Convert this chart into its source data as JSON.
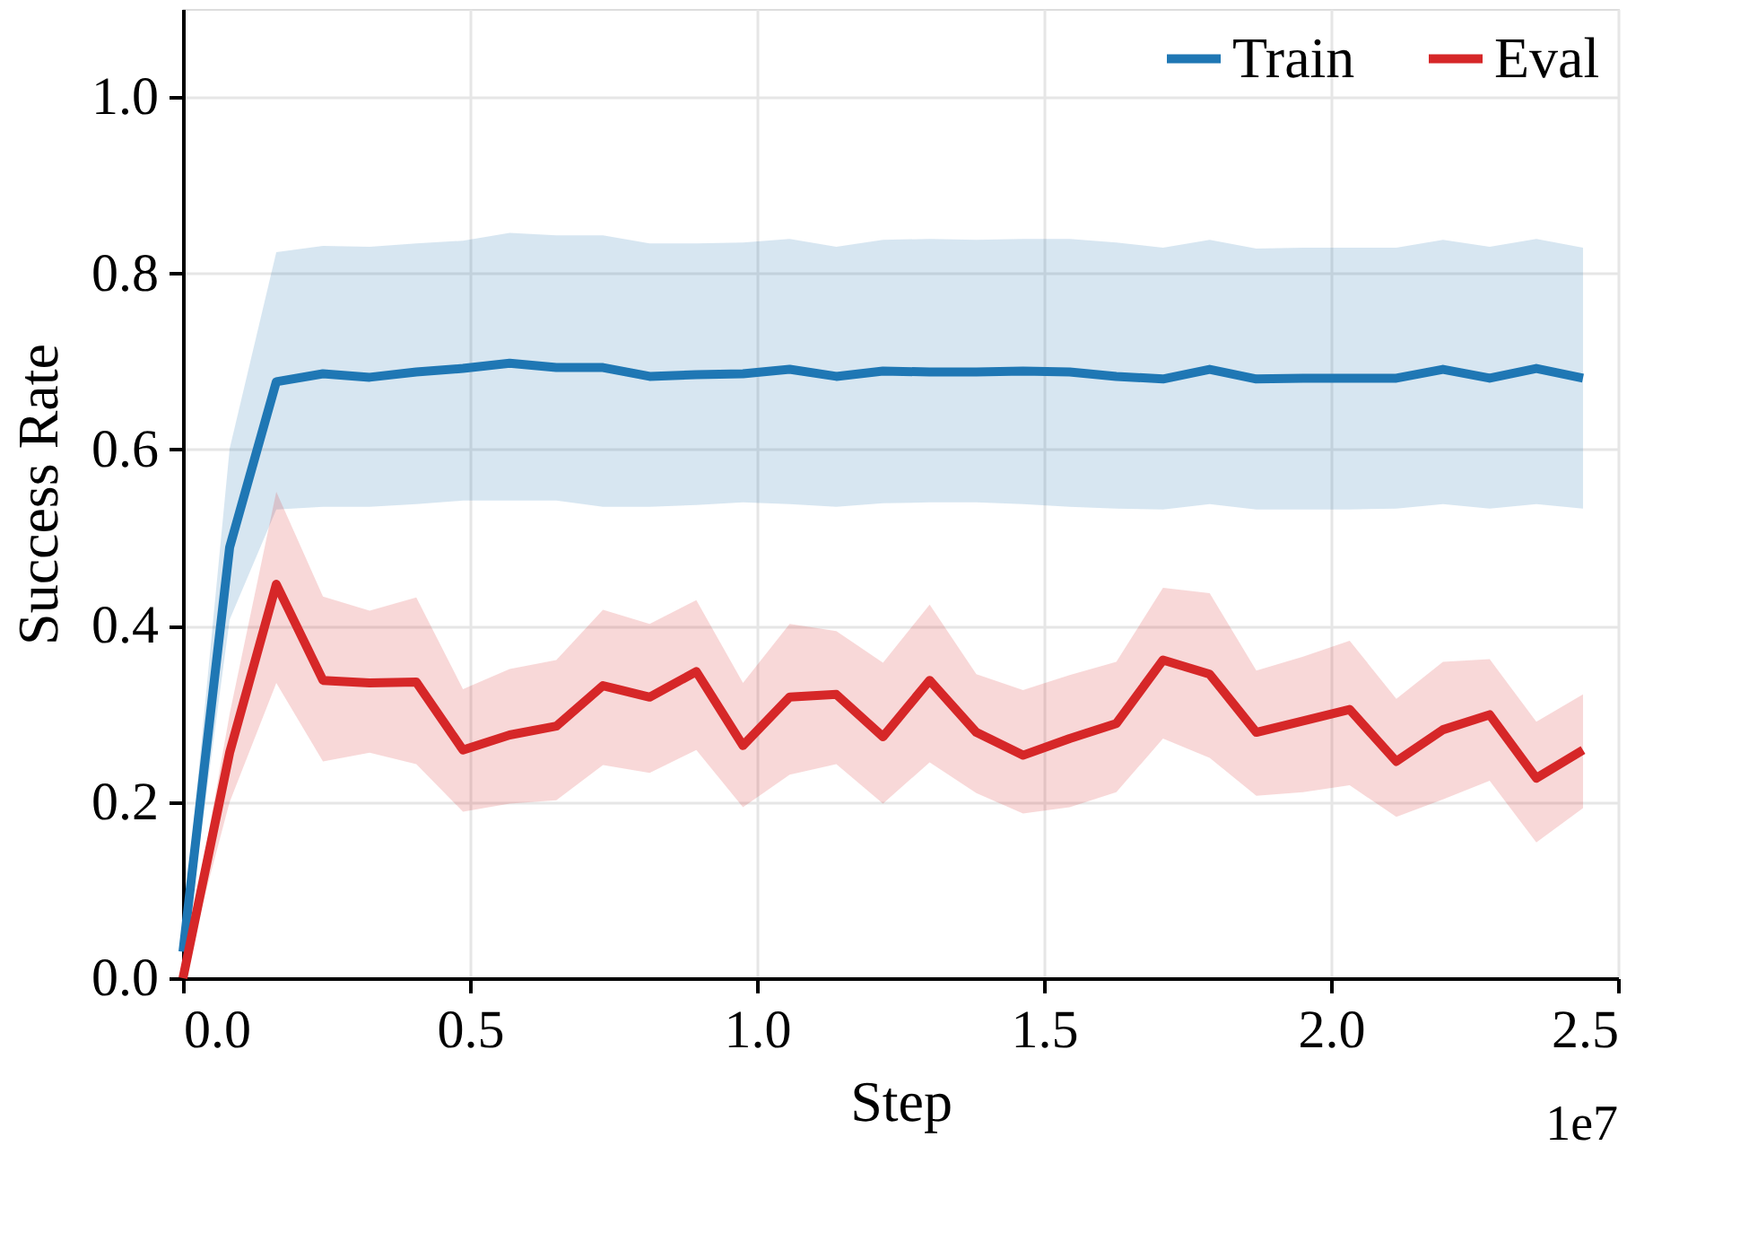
{
  "chart_data": {
    "type": "line",
    "xlabel": "Step",
    "ylabel": "Success Rate",
    "annotations": [
      "1e7"
    ],
    "x": [
      0,
      0.0813,
      0.1626,
      0.2439,
      0.3252,
      0.4065,
      0.4878,
      0.5691,
      0.6504,
      0.7317,
      0.813,
      0.8943,
      0.9756,
      1.0569,
      1.1382,
      1.2195,
      1.3008,
      1.3821,
      1.4634,
      1.5447,
      1.626,
      1.7073,
      1.7886,
      1.8699,
      1.9512,
      2.0325,
      2.1138,
      2.1951,
      2.2764,
      2.3577,
      2.439
    ],
    "series": [
      {
        "name": "Train",
        "color": "#1f77b4",
        "values": [
          0.03,
          0.489,
          0.677,
          0.686,
          0.682,
          0.688,
          0.692,
          0.698,
          0.693,
          0.693,
          0.683,
          0.685,
          0.686,
          0.691,
          0.683,
          0.689,
          0.688,
          0.688,
          0.689,
          0.688,
          0.683,
          0.68,
          0.691,
          0.68,
          0.681,
          0.681,
          0.681,
          0.691,
          0.681,
          0.692,
          0.681
        ],
        "lower": [
          0.01,
          0.407,
          0.532,
          0.535,
          0.535,
          0.538,
          0.542,
          0.542,
          0.542,
          0.535,
          0.535,
          0.537,
          0.54,
          0.538,
          0.535,
          0.539,
          0.54,
          0.54,
          0.538,
          0.535,
          0.533,
          0.532,
          0.538,
          0.532,
          0.532,
          0.532,
          0.533,
          0.538,
          0.533,
          0.538,
          0.533
        ],
        "upper": [
          0.05,
          0.601,
          0.824,
          0.831,
          0.83,
          0.834,
          0.837,
          0.846,
          0.843,
          0.843,
          0.834,
          0.834,
          0.835,
          0.839,
          0.83,
          0.838,
          0.839,
          0.838,
          0.839,
          0.839,
          0.835,
          0.829,
          0.838,
          0.828,
          0.829,
          0.829,
          0.829,
          0.838,
          0.83,
          0.839,
          0.829
        ]
      },
      {
        "name": "Eval",
        "color": "#d62728",
        "values": [
          0,
          0.256,
          0.447,
          0.338,
          0.335,
          0.336,
          0.259,
          0.276,
          0.286,
          0.332,
          0.319,
          0.348,
          0.264,
          0.319,
          0.322,
          0.274,
          0.338,
          0.279,
          0.253,
          0.272,
          0.289,
          0.361,
          0.345,
          0.279,
          0.292,
          0.305,
          0.246,
          0.282,
          0.299,
          0.227,
          0.259
        ],
        "lower": [
          0,
          0.2,
          0.335,
          0.246,
          0.256,
          0.243,
          0.189,
          0.198,
          0.202,
          0.242,
          0.233,
          0.259,
          0.194,
          0.231,
          0.243,
          0.198,
          0.245,
          0.21,
          0.187,
          0.194,
          0.211,
          0.272,
          0.25,
          0.207,
          0.211,
          0.219,
          0.183,
          0.203,
          0.224,
          0.154,
          0.193
        ],
        "upper": [
          0,
          0.3,
          0.552,
          0.433,
          0.417,
          0.432,
          0.328,
          0.351,
          0.361,
          0.418,
          0.402,
          0.429,
          0.335,
          0.402,
          0.394,
          0.358,
          0.424,
          0.345,
          0.327,
          0.344,
          0.359,
          0.443,
          0.437,
          0.349,
          0.365,
          0.383,
          0.317,
          0.359,
          0.362,
          0.291,
          0.322
        ]
      }
    ],
    "xlim": [
      0,
      2.5
    ],
    "xticks": [
      {
        "value": 0,
        "label": "0.0"
      },
      {
        "value": 0.5,
        "label": "0.5"
      },
      {
        "value": 1.0,
        "label": "1.0"
      },
      {
        "value": 1.5,
        "label": "1.5"
      },
      {
        "value": 2.0,
        "label": "2.0"
      },
      {
        "value": 2.5,
        "label": "2.5"
      }
    ],
    "ylim": [
      0,
      1.1
    ],
    "yticks": [
      {
        "value": 0,
        "label": "0.0"
      },
      {
        "value": 0.2,
        "label": "0.2"
      },
      {
        "value": 0.4,
        "label": "0.4"
      },
      {
        "value": 0.6,
        "label": "0.6"
      },
      {
        "value": 0.8,
        "label": "0.8"
      },
      {
        "value": 1.0,
        "label": "1.0"
      }
    ],
    "grid": true,
    "legend": "top right",
    "marker": "none",
    "line_style": "solid"
  }
}
